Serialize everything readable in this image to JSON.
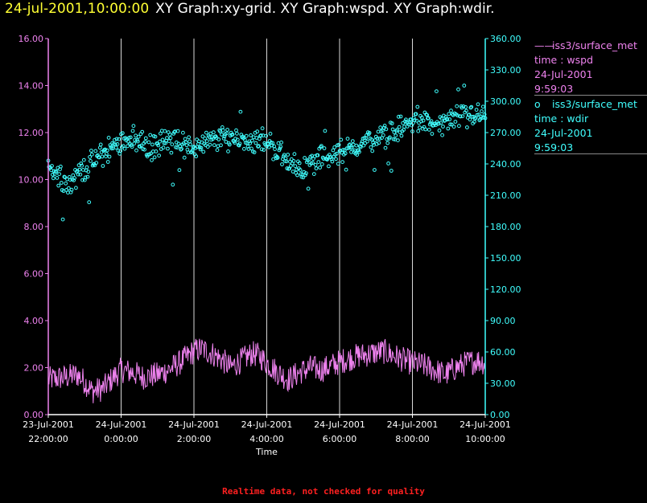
{
  "header": {
    "timestamp": "24-jul-2001,10:00:00",
    "graphs": "XY Graph:xy-grid.  XY Graph:wspd.  XY Graph:wdir."
  },
  "legend": [
    {
      "marker": "——",
      "source": "iss3/surface_met",
      "field": "time : wspd",
      "date": "24-Jul-2001",
      "time": "9:59:03",
      "color": "#ee82ee"
    },
    {
      "marker": "o",
      "source": "iss3/surface_met",
      "field": "time : wdir",
      "date": "24-Jul-2001",
      "time": "9:59:03",
      "color": "#40ffff"
    }
  ],
  "footer": "Realtime data, not checked for quality",
  "chart_data": {
    "type": "scatter",
    "xlabel": "Time",
    "x_ticks": [
      {
        "date": "23-Jul-2001",
        "time": "22:00:00",
        "hour": 0
      },
      {
        "date": "24-Jul-2001",
        "time": "0:00:00",
        "hour": 2
      },
      {
        "date": "24-Jul-2001",
        "time": "2:00:00",
        "hour": 4
      },
      {
        "date": "24-Jul-2001",
        "time": "4:00:00",
        "hour": 6
      },
      {
        "date": "24-Jul-2001",
        "time": "6:00:00",
        "hour": 8
      },
      {
        "date": "24-Jul-2001",
        "time": "8:00:00",
        "hour": 10
      },
      {
        "date": "24-Jul-2001",
        "time": "10:00:00",
        "hour": 12
      }
    ],
    "xlim_hours": [
      0,
      12
    ],
    "y_left": {
      "ticks": [
        "0.00",
        "2.00",
        "4.00",
        "6.00",
        "8.00",
        "10.00",
        "12.00",
        "14.00",
        "16.00"
      ],
      "lim": [
        0,
        16
      ],
      "color": "#ee82ee"
    },
    "y_right": {
      "ticks": [
        "0.00",
        "30.00",
        "60.00",
        "90.00",
        "120.00",
        "150.00",
        "180.00",
        "210.00",
        "240.00",
        "270.00",
        "300.00",
        "330.00",
        "360.00"
      ],
      "lim": [
        0,
        360
      ],
      "color": "#40ffff"
    },
    "series": [
      {
        "name": "time : wspd",
        "axis": "left",
        "style": "line",
        "color": "#ee82ee",
        "anchors": [
          [
            0,
            1.5
          ],
          [
            0.5,
            1.6
          ],
          [
            0.8,
            1.7
          ],
          [
            1.0,
            1.4
          ],
          [
            1.2,
            1.0
          ],
          [
            1.5,
            1.1
          ],
          [
            1.8,
            1.6
          ],
          [
            2.0,
            1.9
          ],
          [
            2.3,
            1.8
          ],
          [
            2.6,
            1.6
          ],
          [
            3.0,
            1.7
          ],
          [
            3.3,
            1.9
          ],
          [
            3.6,
            2.2
          ],
          [
            4.0,
            2.7
          ],
          [
            4.2,
            2.8
          ],
          [
            4.5,
            2.6
          ],
          [
            4.8,
            2.3
          ],
          [
            5.0,
            2.0
          ],
          [
            5.3,
            2.3
          ],
          [
            5.6,
            2.6
          ],
          [
            5.8,
            2.5
          ],
          [
            6.0,
            2.2
          ],
          [
            6.3,
            1.8
          ],
          [
            6.6,
            1.5
          ],
          [
            6.9,
            1.8
          ],
          [
            7.2,
            2.0
          ],
          [
            7.5,
            1.9
          ],
          [
            7.8,
            2.1
          ],
          [
            8.1,
            2.3
          ],
          [
            8.5,
            2.5
          ],
          [
            8.9,
            2.6
          ],
          [
            9.2,
            2.7
          ],
          [
            9.5,
            2.5
          ],
          [
            9.8,
            2.3
          ],
          [
            10.0,
            2.2
          ],
          [
            10.3,
            2.1
          ],
          [
            10.6,
            1.9
          ],
          [
            10.9,
            1.7
          ],
          [
            11.2,
            2.0
          ],
          [
            11.5,
            2.2
          ],
          [
            11.8,
            2.3
          ],
          [
            12.0,
            2.2
          ]
        ],
        "amplitude": 0.55
      },
      {
        "name": "time : wdir",
        "axis": "right",
        "style": "scatter",
        "color": "#40ffff",
        "anchors": [
          [
            0,
            240
          ],
          [
            0.3,
            230
          ],
          [
            0.6,
            220
          ],
          [
            0.9,
            235
          ],
          [
            1.2,
            240
          ],
          [
            1.5,
            250
          ],
          [
            1.8,
            255
          ],
          [
            2.0,
            262
          ],
          [
            2.2,
            265
          ],
          [
            2.5,
            262
          ],
          [
            2.8,
            255
          ],
          [
            3.0,
            258
          ],
          [
            3.3,
            262
          ],
          [
            3.6,
            260
          ],
          [
            3.9,
            255
          ],
          [
            4.2,
            258
          ],
          [
            4.5,
            262
          ],
          [
            4.8,
            265
          ],
          [
            5.0,
            266
          ],
          [
            5.3,
            264
          ],
          [
            5.6,
            262
          ],
          [
            5.9,
            263
          ],
          [
            6.2,
            256
          ],
          [
            6.5,
            246
          ],
          [
            6.8,
            238
          ],
          [
            7.0,
            235
          ],
          [
            7.3,
            242
          ],
          [
            7.6,
            248
          ],
          [
            7.9,
            250
          ],
          [
            8.2,
            253
          ],
          [
            8.5,
            258
          ],
          [
            8.8,
            262
          ],
          [
            9.1,
            264
          ],
          [
            9.4,
            268
          ],
          [
            9.7,
            275
          ],
          [
            10.0,
            280
          ],
          [
            10.3,
            280
          ],
          [
            10.6,
            277
          ],
          [
            10.9,
            280
          ],
          [
            11.2,
            282
          ],
          [
            11.5,
            286
          ],
          [
            11.8,
            287
          ],
          [
            12.0,
            288
          ]
        ],
        "spread": 14
      }
    ]
  }
}
